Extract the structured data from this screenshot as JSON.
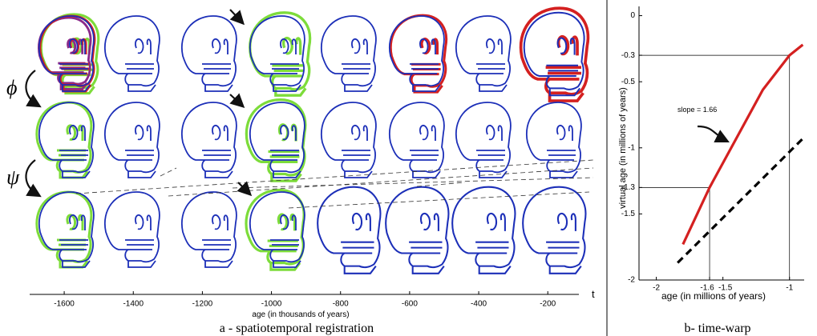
{
  "panel_a": {
    "symbols": [
      "ϕ",
      "ψ"
    ],
    "xlim": [
      -1700,
      -110
    ],
    "xticks": [
      -1600,
      -1400,
      -1200,
      -1000,
      -800,
      -600,
      -400,
      -200
    ],
    "axis_end_label": "t",
    "xlabel": "age (in thousands of years)",
    "caption": "a - spatiotemporal registration"
  },
  "chart_data": {
    "type": "line",
    "xlabel": "age (in millions of years)",
    "ylabel": "virtual age (in millions of years)",
    "annotation": "slope = 1.66",
    "caption": "b- time-warp",
    "xlim": [
      -2.13,
      -0.89
    ],
    "ylim": [
      -2,
      0.07
    ],
    "xticks": [
      -2,
      -1.6,
      -1.5,
      -1
    ],
    "yticks": [
      0,
      -0.3,
      -0.5,
      -1,
      -1.3,
      -1.5,
      -2
    ],
    "series": [
      {
        "color": "#d42020",
        "linestyle": "solid",
        "x": [
          -1.8,
          -1.6,
          -1.2,
          -1,
          -0.9
        ],
        "values": [
          -1.73,
          -1.3,
          -0.56,
          -0.3,
          -0.22
        ]
      },
      {
        "color": "#000000",
        "linestyle": "dashed",
        "x": [
          -1.84,
          -0.9
        ],
        "values": [
          -1.87,
          -0.93
        ]
      }
    ]
  }
}
